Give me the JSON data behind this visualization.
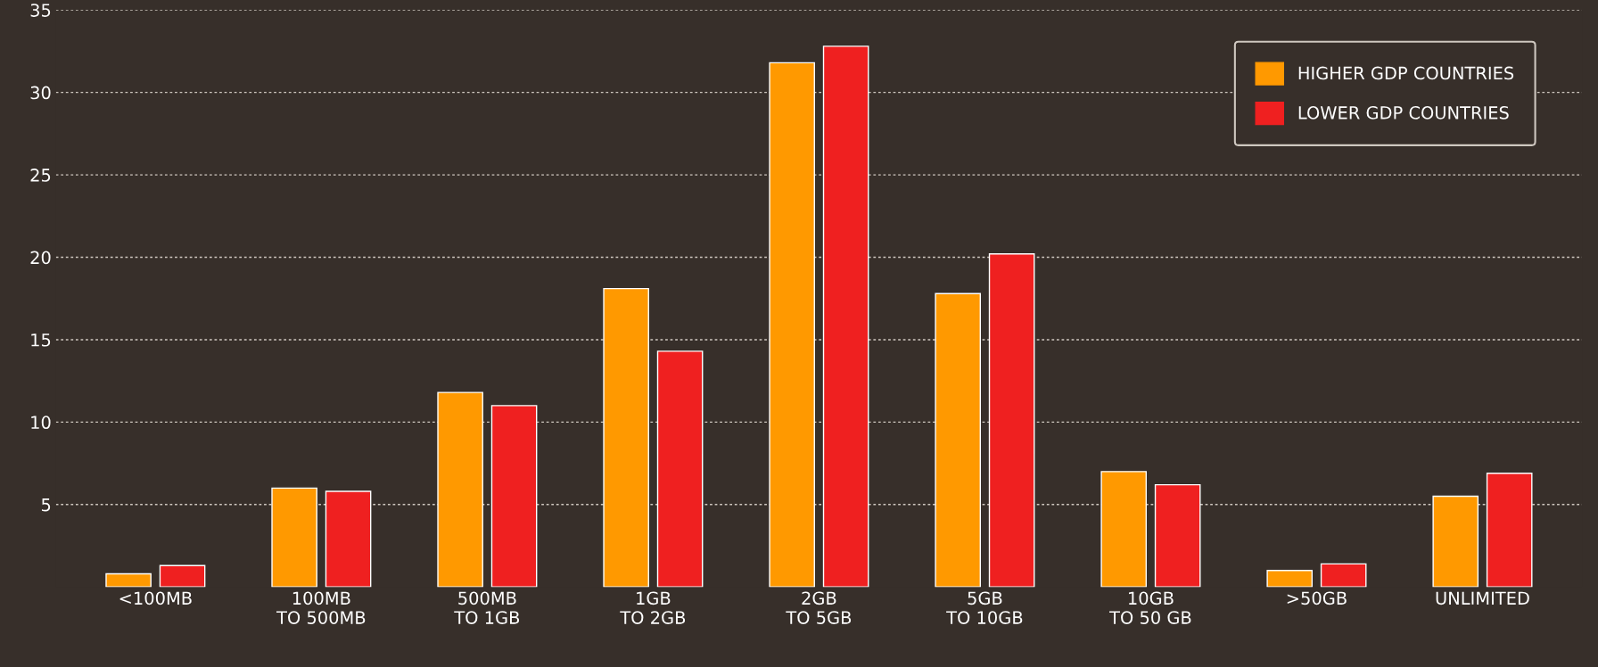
{
  "chart_data": {
    "type": "bar",
    "categories": [
      "<100MB",
      "100MB\nTO 500MB",
      "500MB\nTO 1GB",
      "1GB\nTO 2GB",
      "2GB\nTO 5GB",
      "5GB\nTO 10GB",
      "10GB\nTO 50 GB",
      ">50GB",
      "UNLIMITED"
    ],
    "series": [
      {
        "name": "HIGHER GDP COUNTRIES",
        "color": "#ff9900",
        "values": [
          0.8,
          6.0,
          11.8,
          18.1,
          31.8,
          17.8,
          7.0,
          1.0,
          5.5
        ]
      },
      {
        "name": "LOWER GDP COUNTRIES",
        "color": "#ef2020",
        "values": [
          1.3,
          5.8,
          11.0,
          14.3,
          32.8,
          20.2,
          6.2,
          1.4,
          6.9
        ]
      }
    ],
    "ylim": [
      0,
      35
    ],
    "yticks": [
      5,
      10,
      15,
      20,
      25,
      30,
      35
    ],
    "grid": "y",
    "legend": "top right"
  }
}
